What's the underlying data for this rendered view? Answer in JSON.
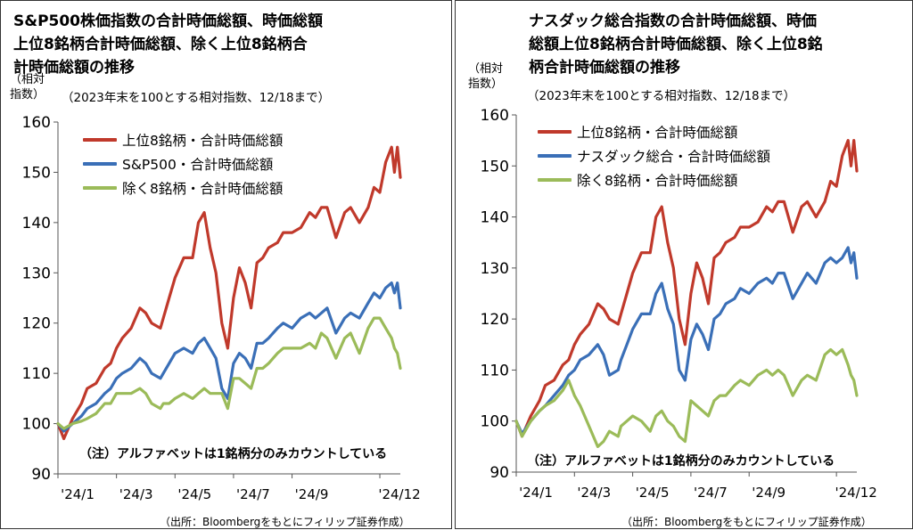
{
  "chart_data": [
    {
      "type": "line",
      "title": "S&P500株価指数の合計時価総額、時価総額上位8銘柄合計時価総額、除く上位8銘柄合計時価総額の推移",
      "title_lines": [
        "S&P500株価指数の合計時価総額、時価総額",
        "上位8銘柄合計時価総額、除く上位8銘柄合",
        "計時価総額の推移"
      ],
      "subtitle": "（2023年末を100とする相対指数、12/18まで）",
      "ylabel": "（相対指数）",
      "ylabel_lines": [
        "（相対",
        "指数）"
      ],
      "ylim": [
        90,
        160
      ],
      "yticks": [
        90,
        100,
        110,
        120,
        130,
        140,
        150,
        160
      ],
      "xticks": [
        "'24/1",
        "'24/3",
        "'24/5",
        "'24/7",
        "'24/9",
        "'24/12"
      ],
      "xtick_months": [
        0,
        2,
        4,
        6,
        8,
        11
      ],
      "grid": false,
      "legend_position": "top-left",
      "note": "（注）アルファベットは1銘柄分のみカウントしている",
      "source": "（出所：Bloombergをもとにフィリップ証券作成）",
      "series": [
        {
          "name": "上位8銘柄・合計時価総額",
          "color": "#c0392b",
          "x": [
            0,
            0.2,
            0.5,
            0.8,
            1,
            1.3,
            1.6,
            1.8,
            2,
            2.2,
            2.5,
            2.8,
            3.0,
            3.2,
            3.5,
            3.6,
            3.8,
            4.0,
            4.3,
            4.6,
            4.8,
            5.0,
            5.2,
            5.4,
            5.6,
            5.8,
            6.0,
            6.2,
            6.4,
            6.6,
            6.8,
            7.0,
            7.2,
            7.5,
            7.7,
            8.0,
            8.3,
            8.6,
            8.8,
            9.0,
            9.2,
            9.5,
            9.8,
            10.0,
            10.3,
            10.6,
            10.8,
            11.0,
            11.2,
            11.4,
            11.5,
            11.6,
            11.7
          ],
          "values": [
            100,
            97,
            101,
            104,
            107,
            108,
            111,
            112,
            115,
            117,
            119,
            123,
            122,
            120,
            119,
            121,
            125,
            129,
            133,
            133,
            140,
            142,
            135,
            130,
            120,
            115,
            125,
            131,
            128,
            123,
            132,
            133,
            135,
            136,
            138,
            138,
            139,
            142,
            141,
            143,
            143,
            137,
            142,
            143,
            140,
            143,
            147,
            146,
            152,
            155,
            150,
            155,
            149
          ]
        },
        {
          "name": "S&P500・合計時価総額",
          "color": "#3a6fb7",
          "x": [
            0,
            0.2,
            0.5,
            0.8,
            1,
            1.3,
            1.6,
            1.8,
            2,
            2.2,
            2.5,
            2.8,
            3.0,
            3.2,
            3.5,
            3.6,
            3.8,
            4.0,
            4.3,
            4.6,
            4.8,
            5.0,
            5.2,
            5.4,
            5.6,
            5.8,
            6.0,
            6.2,
            6.4,
            6.6,
            6.8,
            7.0,
            7.2,
            7.5,
            7.7,
            8.0,
            8.3,
            8.6,
            8.8,
            9.0,
            9.2,
            9.5,
            9.8,
            10.0,
            10.3,
            10.6,
            10.8,
            11.0,
            11.2,
            11.4,
            11.5,
            11.6,
            11.7
          ],
          "values": [
            100,
            98.5,
            100,
            101.5,
            103,
            104,
            106,
            107,
            109,
            110,
            111,
            113,
            112,
            110,
            109,
            110,
            112,
            114,
            115,
            114,
            116,
            117,
            115,
            113,
            107,
            105,
            112,
            114,
            113,
            111,
            116,
            116,
            117,
            119,
            120,
            119,
            121,
            122,
            121,
            122,
            123,
            118,
            121,
            122,
            121,
            124,
            126,
            125,
            127,
            128,
            126,
            128,
            123
          ]
        },
        {
          "name": "除く8銘柄・合計時価総額",
          "color": "#9bbb59",
          "x": [
            0,
            0.2,
            0.5,
            0.8,
            1,
            1.3,
            1.6,
            1.8,
            2,
            2.2,
            2.5,
            2.8,
            3.0,
            3.2,
            3.5,
            3.6,
            3.8,
            4.0,
            4.3,
            4.6,
            4.8,
            5.0,
            5.2,
            5.4,
            5.6,
            5.8,
            6.0,
            6.2,
            6.4,
            6.6,
            6.8,
            7.0,
            7.2,
            7.5,
            7.7,
            8.0,
            8.3,
            8.6,
            8.8,
            9.0,
            9.2,
            9.5,
            9.8,
            10.0,
            10.3,
            10.6,
            10.8,
            11.0,
            11.2,
            11.4,
            11.5,
            11.6,
            11.7
          ],
          "values": [
            100,
            99,
            100,
            100.5,
            101,
            102,
            104,
            104,
            106,
            106,
            106,
            107,
            106,
            104,
            103,
            104,
            104,
            105,
            106,
            105,
            106,
            107,
            106,
            106,
            106,
            103,
            109,
            109,
            108,
            107,
            111,
            111,
            112,
            114,
            115,
            115,
            115,
            116,
            115,
            118,
            117,
            113,
            117,
            118,
            114,
            119,
            121,
            121,
            119,
            117,
            115,
            114,
            111
          ]
        }
      ]
    },
    {
      "type": "line",
      "title": "ナスダック総合指数の合計時価総額、時価総額上位8銘柄合計時価総額、除く上位8銘柄合計時価総額の推移",
      "title_lines": [
        "ナスダック総合指数の合計時価総額、時価",
        "総額上位8銘柄合計時価総額、除く上位8銘",
        "柄合計時価総額の推移"
      ],
      "subtitle": "（2023年末を100とする相対指数、12/18まで）",
      "ylabel": "（相対指数）",
      "ylabel_lines": [
        "（相対",
        "指数）"
      ],
      "ylim": [
        90,
        160
      ],
      "yticks": [
        90,
        100,
        110,
        120,
        130,
        140,
        150,
        160
      ],
      "xticks": [
        "'24/1",
        "'24/3",
        "'24/5",
        "'24/7",
        "'24/9",
        "'24/12"
      ],
      "xtick_months": [
        0,
        2,
        4,
        6,
        8,
        11
      ],
      "grid": false,
      "legend_position": "top-left",
      "note": "（注）アルファベットは1銘柄分のみカウントしている",
      "source": "（出所：Bloombergをもとにフィリップ証券作成）",
      "series": [
        {
          "name": "上位8銘柄・合計時価総額",
          "color": "#c0392b",
          "x": [
            0,
            0.2,
            0.5,
            0.8,
            1,
            1.3,
            1.6,
            1.8,
            2,
            2.2,
            2.5,
            2.8,
            3.0,
            3.2,
            3.5,
            3.6,
            3.8,
            4.0,
            4.3,
            4.6,
            4.8,
            5.0,
            5.2,
            5.4,
            5.6,
            5.8,
            6.0,
            6.2,
            6.4,
            6.6,
            6.8,
            7.0,
            7.2,
            7.5,
            7.7,
            8.0,
            8.3,
            8.6,
            8.8,
            9.0,
            9.2,
            9.5,
            9.8,
            10.0,
            10.3,
            10.6,
            10.8,
            11.0,
            11.2,
            11.4,
            11.5,
            11.6,
            11.7
          ],
          "values": [
            100,
            97,
            101,
            104,
            107,
            108,
            111,
            112,
            115,
            117,
            119,
            123,
            122,
            120,
            119,
            121,
            125,
            129,
            133,
            133,
            140,
            142,
            135,
            130,
            120,
            115,
            125,
            131,
            128,
            123,
            132,
            133,
            135,
            136,
            138,
            138,
            139,
            142,
            141,
            143,
            143,
            137,
            142,
            143,
            140,
            143,
            147,
            146,
            152,
            155,
            150,
            155,
            149
          ]
        },
        {
          "name": "ナスダック総合・合計時価総額",
          "color": "#3a6fb7",
          "x": [
            0,
            0.2,
            0.5,
            0.8,
            1,
            1.3,
            1.6,
            1.8,
            2,
            2.2,
            2.5,
            2.8,
            3.0,
            3.2,
            3.5,
            3.6,
            3.8,
            4.0,
            4.3,
            4.6,
            4.8,
            5.0,
            5.2,
            5.4,
            5.6,
            5.8,
            6.0,
            6.2,
            6.4,
            6.6,
            6.8,
            7.0,
            7.2,
            7.5,
            7.7,
            8.0,
            8.3,
            8.6,
            8.8,
            9.0,
            9.2,
            9.5,
            9.8,
            10.0,
            10.3,
            10.6,
            10.8,
            11.0,
            11.2,
            11.4,
            11.5,
            11.6,
            11.7
          ],
          "values": [
            100,
            97.5,
            100,
            102,
            103,
            105,
            107,
            109,
            110,
            112,
            113,
            115,
            113,
            109,
            110,
            112,
            115,
            118,
            121,
            121,
            125,
            127,
            122,
            119,
            110,
            108,
            116,
            119,
            117,
            114,
            120,
            121,
            123,
            124,
            126,
            125,
            127,
            128,
            127,
            129,
            129,
            124,
            127,
            129,
            127,
            131,
            132,
            131,
            132,
            134,
            131,
            133,
            128
          ]
        },
        {
          "name": "除く8銘柄・合計時価総額",
          "color": "#9bbb59",
          "x": [
            0,
            0.2,
            0.5,
            0.8,
            1,
            1.3,
            1.6,
            1.8,
            2,
            2.2,
            2.5,
            2.8,
            3.0,
            3.2,
            3.5,
            3.6,
            3.8,
            4.0,
            4.3,
            4.6,
            4.8,
            5.0,
            5.2,
            5.4,
            5.6,
            5.8,
            6.0,
            6.2,
            6.4,
            6.6,
            6.8,
            7.0,
            7.2,
            7.5,
            7.7,
            8.0,
            8.3,
            8.6,
            8.8,
            9.0,
            9.2,
            9.5,
            9.8,
            10.0,
            10.3,
            10.6,
            10.8,
            11.0,
            11.2,
            11.4,
            11.5,
            11.6,
            11.7
          ],
          "values": [
            100,
            97,
            100,
            102,
            103,
            104,
            106,
            108,
            105,
            103,
            99,
            95,
            96,
            98,
            97,
            99,
            100,
            101,
            100,
            98,
            101,
            102,
            100,
            99,
            97,
            96,
            104,
            103,
            102,
            101,
            104,
            105,
            105,
            107,
            108,
            107,
            109,
            110,
            109,
            110,
            109,
            105,
            108,
            109,
            108,
            113,
            114,
            113,
            114,
            111,
            109,
            108,
            105
          ]
        }
      ]
    }
  ]
}
